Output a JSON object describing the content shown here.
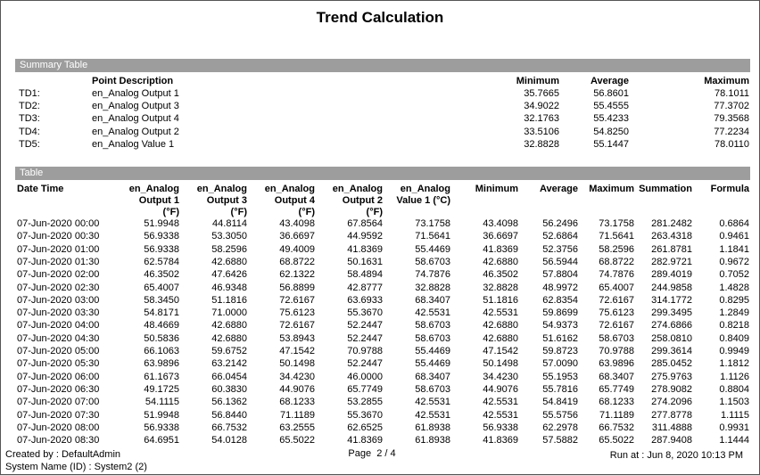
{
  "header": {
    "title": "Trend Calculation"
  },
  "summary": {
    "title": "Summary Table",
    "columns": [
      "Point Description",
      "Minimum",
      "Average",
      "Maximum"
    ],
    "rows": [
      [
        "TD1:",
        "en_Analog Output 1",
        "35.7665",
        "56.8601",
        "78.1011"
      ],
      [
        "TD2:",
        "en_Analog Output 3",
        "34.9022",
        "55.4555",
        "77.3702"
      ],
      [
        "TD3:",
        "en_Analog Output 4",
        "32.1763",
        "55.4233",
        "79.3568"
      ],
      [
        "TD4:",
        "en_Analog Output 2",
        "33.5106",
        "54.8250",
        "77.2234"
      ],
      [
        "TD5:",
        "en_Analog Value 1",
        "32.8828",
        "55.1447",
        "78.0110"
      ]
    ]
  },
  "table": {
    "title": "Table",
    "columns": [
      "Date Time",
      "en_Analog\nOutput 1\n(°F)",
      "en_Analog\nOutput 3\n(°F)",
      "en_Analog\nOutput 4\n(°F)",
      "en_Analog\nOutput 2\n(°F)",
      "en_Analog\nValue 1 (°C)",
      "Minimum",
      "Average",
      "Maximum",
      "Summation",
      "Formula"
    ],
    "rows": [
      [
        "07-Jun-2020 00:00",
        "51.9948",
        "44.8114",
        "43.4098",
        "67.8564",
        "73.1758",
        "43.4098",
        "56.2496",
        "73.1758",
        "281.2482",
        "0.6864"
      ],
      [
        "07-Jun-2020 00:30",
        "56.9338",
        "53.3050",
        "36.6697",
        "44.9592",
        "71.5641",
        "36.6697",
        "52.6864",
        "71.5641",
        "263.4318",
        "0.9461"
      ],
      [
        "07-Jun-2020 01:00",
        "56.9338",
        "58.2596",
        "49.4009",
        "41.8369",
        "55.4469",
        "41.8369",
        "52.3756",
        "58.2596",
        "261.8781",
        "1.1841"
      ],
      [
        "07-Jun-2020 01:30",
        "62.5784",
        "42.6880",
        "68.8722",
        "50.1631",
        "58.6703",
        "42.6880",
        "56.5944",
        "68.8722",
        "282.9721",
        "0.9672"
      ],
      [
        "07-Jun-2020 02:00",
        "46.3502",
        "47.6426",
        "62.1322",
        "58.4894",
        "74.7876",
        "46.3502",
        "57.8804",
        "74.7876",
        "289.4019",
        "0.7052"
      ],
      [
        "07-Jun-2020 02:30",
        "65.4007",
        "46.9348",
        "56.8899",
        "42.8777",
        "32.8828",
        "32.8828",
        "48.9972",
        "65.4007",
        "244.9858",
        "1.4828"
      ],
      [
        "07-Jun-2020 03:00",
        "58.3450",
        "51.1816",
        "72.6167",
        "63.6933",
        "68.3407",
        "51.1816",
        "62.8354",
        "72.6167",
        "314.1772",
        "0.8295"
      ],
      [
        "07-Jun-2020 03:30",
        "54.8171",
        "71.0000",
        "75.6123",
        "55.3670",
        "42.5531",
        "42.5531",
        "59.8699",
        "75.6123",
        "299.3495",
        "1.2849"
      ],
      [
        "07-Jun-2020 04:00",
        "48.4669",
        "42.6880",
        "72.6167",
        "52.2447",
        "58.6703",
        "42.6880",
        "54.9373",
        "72.6167",
        "274.6866",
        "0.8218"
      ],
      [
        "07-Jun-2020 04:30",
        "50.5836",
        "42.6880",
        "53.8943",
        "52.2447",
        "58.6703",
        "42.6880",
        "51.6162",
        "58.6703",
        "258.0810",
        "0.8409"
      ],
      [
        "07-Jun-2020 05:00",
        "66.1063",
        "59.6752",
        "47.1542",
        "70.9788",
        "55.4469",
        "47.1542",
        "59.8723",
        "70.9788",
        "299.3614",
        "0.9949"
      ],
      [
        "07-Jun-2020 05:30",
        "63.9896",
        "63.2142",
        "50.1498",
        "52.2447",
        "55.4469",
        "50.1498",
        "57.0090",
        "63.9896",
        "285.0452",
        "1.1812"
      ],
      [
        "07-Jun-2020 06:00",
        "61.1673",
        "66.0454",
        "34.4230",
        "46.0000",
        "68.3407",
        "34.4230",
        "55.1953",
        "68.3407",
        "275.9763",
        "1.1126"
      ],
      [
        "07-Jun-2020 06:30",
        "49.1725",
        "60.3830",
        "44.9076",
        "65.7749",
        "58.6703",
        "44.9076",
        "55.7816",
        "65.7749",
        "278.9082",
        "0.8804"
      ],
      [
        "07-Jun-2020 07:00",
        "54.1115",
        "56.1362",
        "68.1233",
        "53.2855",
        "42.5531",
        "42.5531",
        "54.8419",
        "68.1233",
        "274.2096",
        "1.1503"
      ],
      [
        "07-Jun-2020 07:30",
        "51.9948",
        "56.8440",
        "71.1189",
        "55.3670",
        "42.5531",
        "42.5531",
        "55.5756",
        "71.1189",
        "277.8778",
        "1.1115"
      ],
      [
        "07-Jun-2020 08:00",
        "56.9338",
        "66.7532",
        "63.2555",
        "62.6525",
        "61.8938",
        "56.9338",
        "62.2978",
        "66.7532",
        "311.4888",
        "0.9931"
      ],
      [
        "07-Jun-2020 08:30",
        "64.6951",
        "54.0128",
        "65.5022",
        "41.8369",
        "61.8938",
        "41.8369",
        "57.5882",
        "65.5022",
        "287.9408",
        "1.1444"
      ]
    ]
  },
  "footer": {
    "created_by": "Created by : DefaultAdmin",
    "system_name": "System Name (ID) : System2 (2)",
    "page": "Page  2 / 4",
    "run_at": "Run at : Jun 8, 2020 10:13 PM"
  }
}
